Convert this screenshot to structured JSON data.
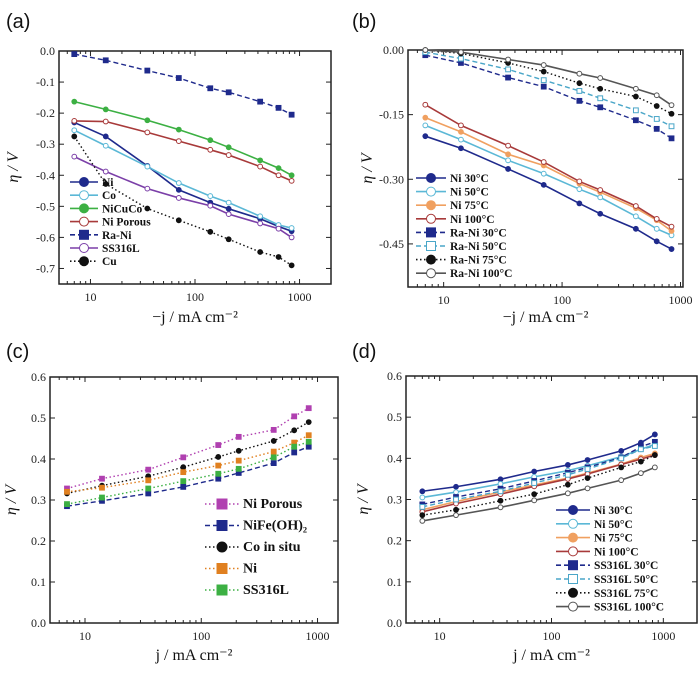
{
  "chart_data": [
    {
      "id": "a",
      "type": "line",
      "panel_label": "(a)",
      "xlabel": "−j / mA cm⁻²",
      "ylabel": "η / V",
      "xscale": "log",
      "xlim": [
        5,
        2000
      ],
      "ylim": [
        -0.75,
        0.0
      ],
      "xticks": [
        10,
        100,
        1000
      ],
      "xtick_labels": [
        "10",
        "100",
        "1000"
      ],
      "yticks": [
        0.0,
        -0.1,
        -0.2,
        -0.3,
        -0.4,
        -0.5,
        -0.6,
        -0.7
      ],
      "ytick_labels": [
        "0.0",
        "-0.1",
        "-0.2",
        "-0.3",
        "-0.4",
        "-0.5",
        "-0.6",
        "-0.7"
      ],
      "legend_position": "bottom-left",
      "x": [
        7,
        14,
        35,
        70,
        140,
        210,
        420,
        630,
        840
      ],
      "series": [
        {
          "name": "Ni",
          "color": "#1f2a8c",
          "marker": "circle-filled",
          "line": "solid",
          "values": [
            -0.23,
            -0.275,
            -0.37,
            -0.447,
            -0.488,
            -0.508,
            -0.54,
            -0.565,
            -0.58
          ]
        },
        {
          "name": "Co",
          "color": "#5bb8d6",
          "marker": "circle-open",
          "line": "solid",
          "values": [
            -0.255,
            -0.305,
            -0.372,
            -0.425,
            -0.467,
            -0.488,
            -0.532,
            -0.56,
            -0.57
          ]
        },
        {
          "name": "NiCuCo",
          "color": "#3cb043",
          "marker": "circle-filled",
          "line": "solid",
          "values": [
            -0.163,
            -0.188,
            -0.223,
            -0.253,
            -0.287,
            -0.31,
            -0.352,
            -0.377,
            -0.4
          ]
        },
        {
          "name": "Ni Porous",
          "color": "#a83a3a",
          "marker": "circle-open",
          "line": "solid",
          "values": [
            -0.225,
            -0.227,
            -0.262,
            -0.29,
            -0.318,
            -0.335,
            -0.372,
            -0.4,
            -0.418
          ]
        },
        {
          "name": "Ra-Ni",
          "color": "#1f2a8c",
          "marker": "square-filled",
          "line": "dashed",
          "values": [
            -0.01,
            -0.03,
            -0.063,
            -0.087,
            -0.12,
            -0.133,
            -0.163,
            -0.183,
            -0.205
          ]
        },
        {
          "name": "SS316L",
          "color": "#7b3fa8",
          "marker": "circle-open",
          "line": "solid",
          "values": [
            -0.34,
            -0.388,
            -0.443,
            -0.473,
            -0.498,
            -0.525,
            -0.555,
            -0.572,
            -0.6
          ]
        },
        {
          "name": "Cu",
          "color": "#111111",
          "marker": "circle-filled",
          "line": "dotted",
          "values": [
            -0.275,
            -0.428,
            -0.507,
            -0.545,
            -0.582,
            -0.606,
            -0.647,
            -0.663,
            -0.69
          ]
        }
      ]
    },
    {
      "id": "b",
      "type": "line",
      "panel_label": "(b)",
      "xlabel": "−j / mA cm⁻²",
      "ylabel": "η / V",
      "xscale": "log",
      "xlim": [
        5,
        1050
      ],
      "ylim": [
        -0.55,
        0.0
      ],
      "xticks": [
        10,
        100,
        1000
      ],
      "xtick_labels": [
        "10",
        "100",
        "1000"
      ],
      "yticks": [
        0.0,
        -0.15,
        -0.3,
        -0.45
      ],
      "ytick_labels": [
        "0.00",
        "-0.15",
        "-0.30",
        "-0.45"
      ],
      "legend_position": "bottom-left",
      "x": [
        7,
        14,
        35,
        70,
        140,
        210,
        420,
        630,
        840
      ],
      "series": [
        {
          "name": "Ni 30°C",
          "color": "#1f2a8c",
          "marker": "circle-filled",
          "line": "solid",
          "values": [
            -0.2,
            -0.228,
            -0.276,
            -0.313,
            -0.356,
            -0.38,
            -0.415,
            -0.444,
            -0.462
          ]
        },
        {
          "name": "Ni 50°C",
          "color": "#5bb8d6",
          "marker": "circle-open",
          "line": "solid",
          "values": [
            -0.175,
            -0.208,
            -0.256,
            -0.287,
            -0.323,
            -0.342,
            -0.386,
            -0.415,
            -0.43
          ]
        },
        {
          "name": "Ni 75°C",
          "color": "#f0a060",
          "marker": "circle-filled",
          "line": "solid",
          "values": [
            -0.157,
            -0.19,
            -0.242,
            -0.268,
            -0.31,
            -0.33,
            -0.367,
            -0.395,
            -0.42
          ]
        },
        {
          "name": "Ni 100°C",
          "color": "#a83a3a",
          "marker": "circle-open",
          "line": "solid",
          "values": [
            -0.127,
            -0.175,
            -0.222,
            -0.26,
            -0.305,
            -0.325,
            -0.362,
            -0.392,
            -0.41
          ]
        },
        {
          "name": "Ra-Ni 30°C",
          "color": "#1f2a8c",
          "marker": "square-filled",
          "line": "dashed",
          "values": [
            -0.012,
            -0.03,
            -0.064,
            -0.085,
            -0.118,
            -0.133,
            -0.163,
            -0.183,
            -0.205
          ]
        },
        {
          "name": "Ra-Ni 50°C",
          "color": "#4aa6c8",
          "marker": "square-open",
          "line": "dashed",
          "values": [
            -0.005,
            -0.02,
            -0.045,
            -0.07,
            -0.095,
            -0.112,
            -0.14,
            -0.16,
            -0.177
          ]
        },
        {
          "name": "Ra-Ni 75°C",
          "color": "#111111",
          "marker": "circle-filled",
          "line": "dotted",
          "values": [
            0.0,
            -0.008,
            -0.03,
            -0.05,
            -0.077,
            -0.09,
            -0.108,
            -0.13,
            -0.148
          ]
        },
        {
          "name": "Ra-Ni 100°C",
          "color": "#555555",
          "marker": "circle-open",
          "line": "solid",
          "values": [
            0.0,
            -0.005,
            -0.022,
            -0.035,
            -0.055,
            -0.065,
            -0.09,
            -0.105,
            -0.128
          ]
        }
      ]
    },
    {
      "id": "c",
      "type": "line",
      "panel_label": "(c)",
      "xlabel": "j / mA cm⁻²",
      "ylabel": "η / V",
      "xscale": "log",
      "xlim": [
        5,
        1500
      ],
      "ylim": [
        0.0,
        0.6
      ],
      "xticks": [
        10,
        100,
        1000
      ],
      "xtick_labels": [
        "10",
        "100",
        "1000"
      ],
      "yticks": [
        0.0,
        0.1,
        0.2,
        0.3,
        0.4,
        0.5,
        0.6
      ],
      "ytick_labels": [
        "0.0",
        "0.1",
        "0.2",
        "0.3",
        "0.4",
        "0.5",
        "0.6"
      ],
      "legend_position": "bottom-right",
      "x": [
        7,
        14,
        35,
        70,
        140,
        210,
        420,
        630,
        840
      ],
      "series": [
        {
          "name": "Ni Porous",
          "color": "#b040b0",
          "marker": "square-filled",
          "line": "dotted",
          "values": [
            0.328,
            0.352,
            0.374,
            0.404,
            0.434,
            0.454,
            0.471,
            0.504,
            0.524
          ]
        },
        {
          "name": "NiFe(OH)₂",
          "color": "#1f2a8c",
          "marker": "square-filled",
          "line": "dashed",
          "values": [
            0.285,
            0.298,
            0.316,
            0.332,
            0.352,
            0.366,
            0.39,
            0.416,
            0.43
          ]
        },
        {
          "name": "Co in situ",
          "color": "#111111",
          "marker": "circle-filled",
          "line": "dotted",
          "values": [
            0.316,
            0.335,
            0.358,
            0.38,
            0.405,
            0.42,
            0.444,
            0.47,
            0.49
          ]
        },
        {
          "name": "Ni",
          "color": "#e08020",
          "marker": "square-filled",
          "line": "dotted",
          "values": [
            0.32,
            0.33,
            0.348,
            0.368,
            0.384,
            0.396,
            0.418,
            0.44,
            0.458
          ]
        },
        {
          "name": "SS316L",
          "color": "#3cb043",
          "marker": "square-filled",
          "line": "dotted",
          "values": [
            0.29,
            0.306,
            0.328,
            0.346,
            0.364,
            0.376,
            0.404,
            0.43,
            0.442
          ]
        }
      ]
    },
    {
      "id": "d",
      "type": "line",
      "panel_label": "(d)",
      "xlabel": "j / mA cm⁻²",
      "ylabel": "η / V",
      "xscale": "log",
      "xlim": [
        5,
        2000
      ],
      "ylim": [
        0.0,
        0.6
      ],
      "xticks": [
        10,
        100,
        1000
      ],
      "xtick_labels": [
        "10",
        "100",
        "1000"
      ],
      "yticks": [
        0.0,
        0.1,
        0.2,
        0.3,
        0.4,
        0.5,
        0.6
      ],
      "ytick_labels": [
        "0.0",
        "0.1",
        "0.2",
        "0.3",
        "0.4",
        "0.5",
        "0.6"
      ],
      "legend_position": "bottom-right",
      "x": [
        7,
        14,
        35,
        70,
        140,
        210,
        420,
        630,
        840
      ],
      "series": [
        {
          "name": "Ni 30°C",
          "color": "#1f2a8c",
          "marker": "circle-filled",
          "line": "solid",
          "values": [
            0.32,
            0.331,
            0.349,
            0.368,
            0.384,
            0.396,
            0.418,
            0.438,
            0.458
          ]
        },
        {
          "name": "Ni 50°C",
          "color": "#5bb8d6",
          "marker": "circle-open",
          "line": "solid",
          "values": [
            0.305,
            0.318,
            0.338,
            0.355,
            0.37,
            0.382,
            0.404,
            0.422,
            0.434
          ]
        },
        {
          "name": "Ni 75°C",
          "color": "#f0a060",
          "marker": "circle-filled",
          "line": "solid",
          "values": [
            0.275,
            0.295,
            0.318,
            0.335,
            0.352,
            0.364,
            0.386,
            0.402,
            0.412
          ]
        },
        {
          "name": "Ni 100°C",
          "color": "#a83a3a",
          "marker": "circle-open",
          "line": "solid",
          "values": [
            0.27,
            0.29,
            0.313,
            0.332,
            0.35,
            0.362,
            0.385,
            0.398,
            0.408
          ]
        },
        {
          "name": "SS316L 30°C",
          "color": "#1f2a8c",
          "marker": "square-filled",
          "line": "dashed",
          "values": [
            0.288,
            0.306,
            0.326,
            0.345,
            0.365,
            0.378,
            0.402,
            0.428,
            0.44
          ]
        },
        {
          "name": "SS316L  50°C",
          "color": "#4aa6c8",
          "marker": "square-open",
          "line": "dashed",
          "values": [
            0.282,
            0.3,
            0.32,
            0.34,
            0.36,
            0.374,
            0.4,
            0.422,
            0.43
          ]
        },
        {
          "name": "SS316L 75°C",
          "color": "#111111",
          "marker": "circle-filled",
          "line": "dotted",
          "values": [
            0.262,
            0.275,
            0.297,
            0.313,
            0.336,
            0.352,
            0.378,
            0.392,
            0.408
          ]
        },
        {
          "name": "SS316L 100°C",
          "color": "#555555",
          "marker": "circle-open",
          "line": "solid",
          "values": [
            0.248,
            0.262,
            0.281,
            0.298,
            0.315,
            0.327,
            0.347,
            0.364,
            0.378
          ]
        }
      ]
    }
  ]
}
